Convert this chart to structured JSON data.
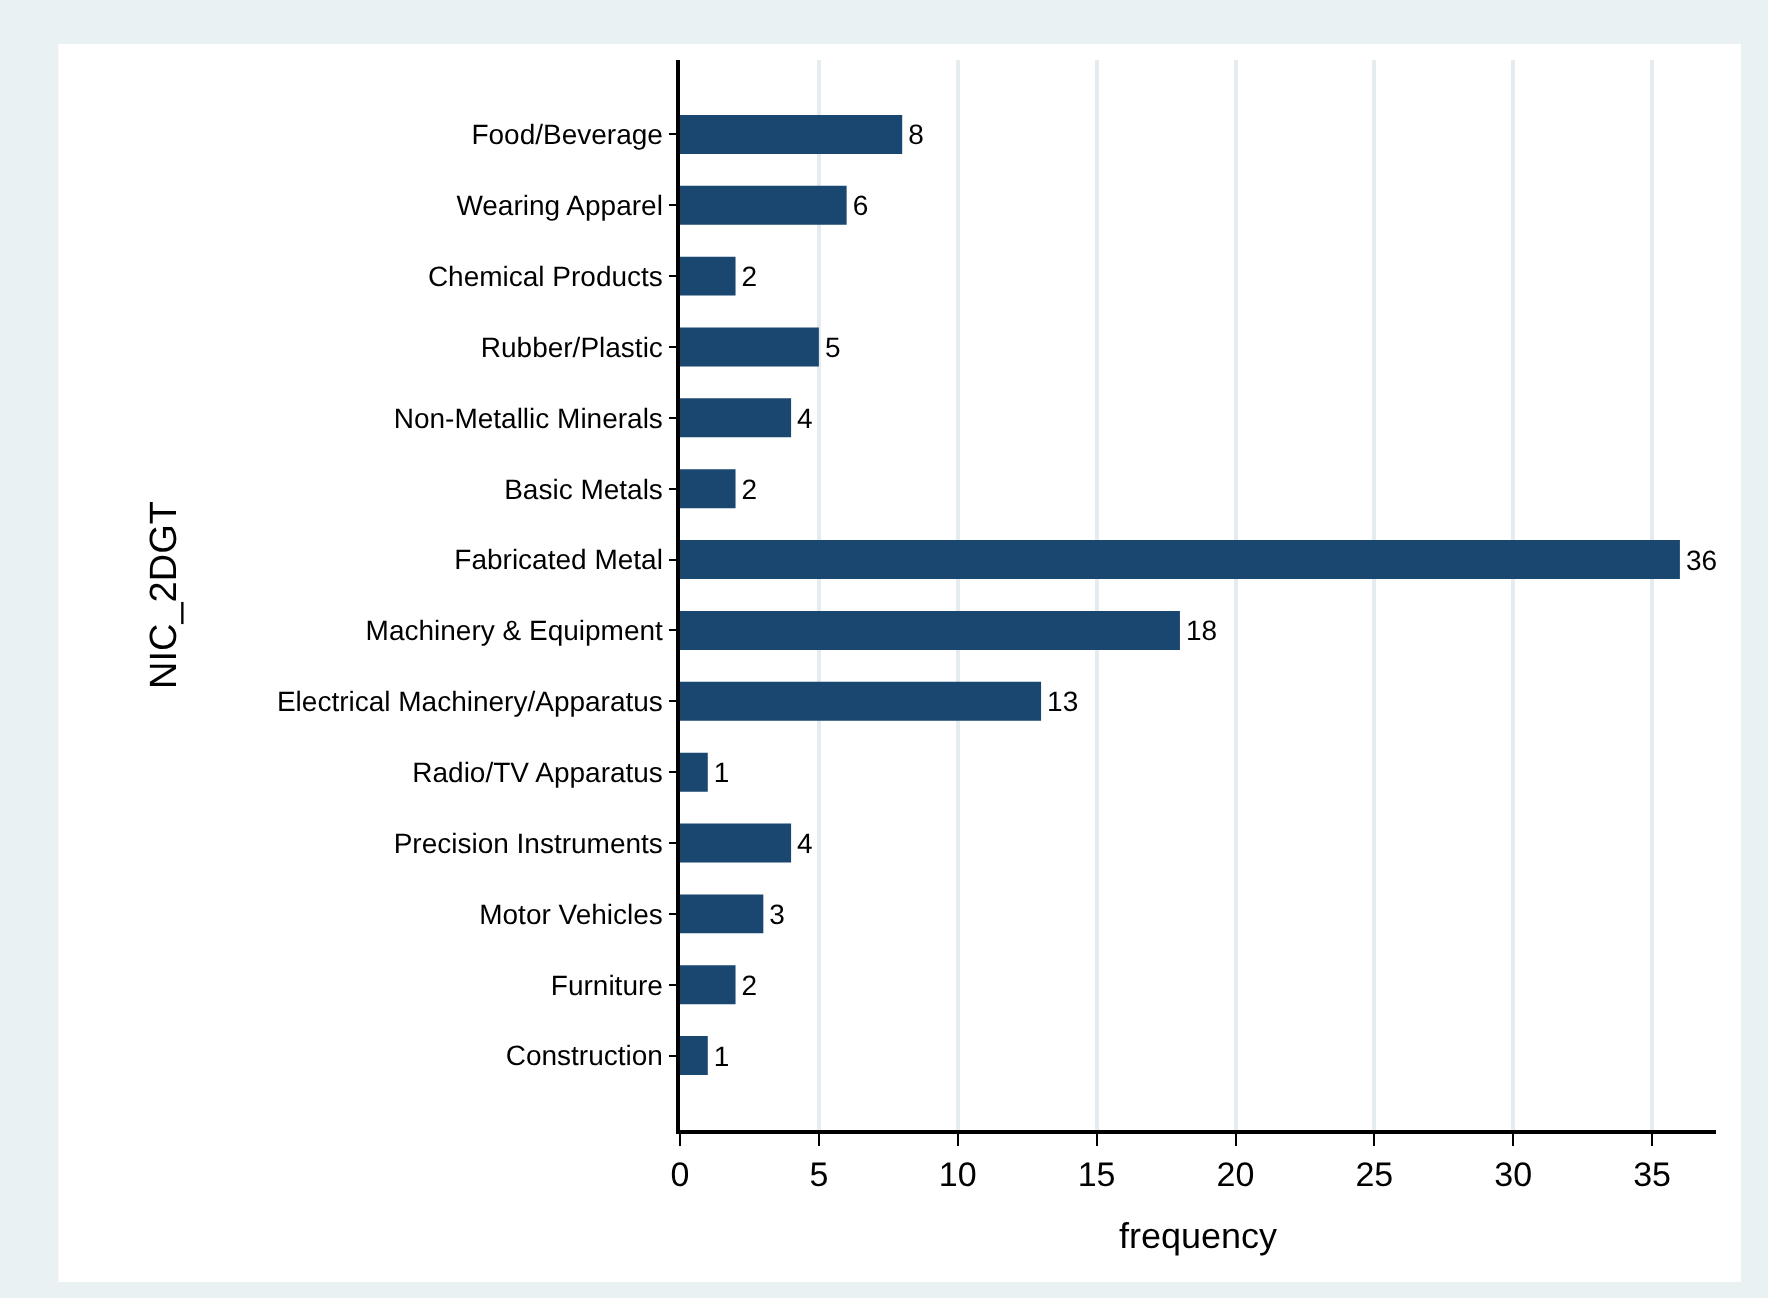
{
  "chart_data": {
    "type": "bar",
    "orientation": "horizontal",
    "xlabel": "frequency",
    "ylabel": "NIC_2DGT",
    "categories": [
      "Food/Beverage",
      "Wearing Apparel",
      "Chemical Products",
      "Rubber/Plastic",
      "Non-Metallic Minerals",
      "Basic Metals",
      "Fabricated Metal",
      "Machinery & Equipment",
      "Electrical Machinery/Apparatus",
      "Radio/TV Apparatus",
      "Precision Instruments",
      "Motor Vehicles",
      "Furniture",
      "Construction"
    ],
    "values": [
      8,
      6,
      2,
      5,
      4,
      2,
      36,
      18,
      13,
      1,
      4,
      3,
      2,
      1
    ],
    "color": "#1a476f",
    "data_labels": true,
    "xlim": [
      0,
      37.3
    ],
    "xticks": [
      0,
      5,
      10,
      15,
      20,
      25,
      30,
      35
    ],
    "grid": "x",
    "legend": false
  }
}
